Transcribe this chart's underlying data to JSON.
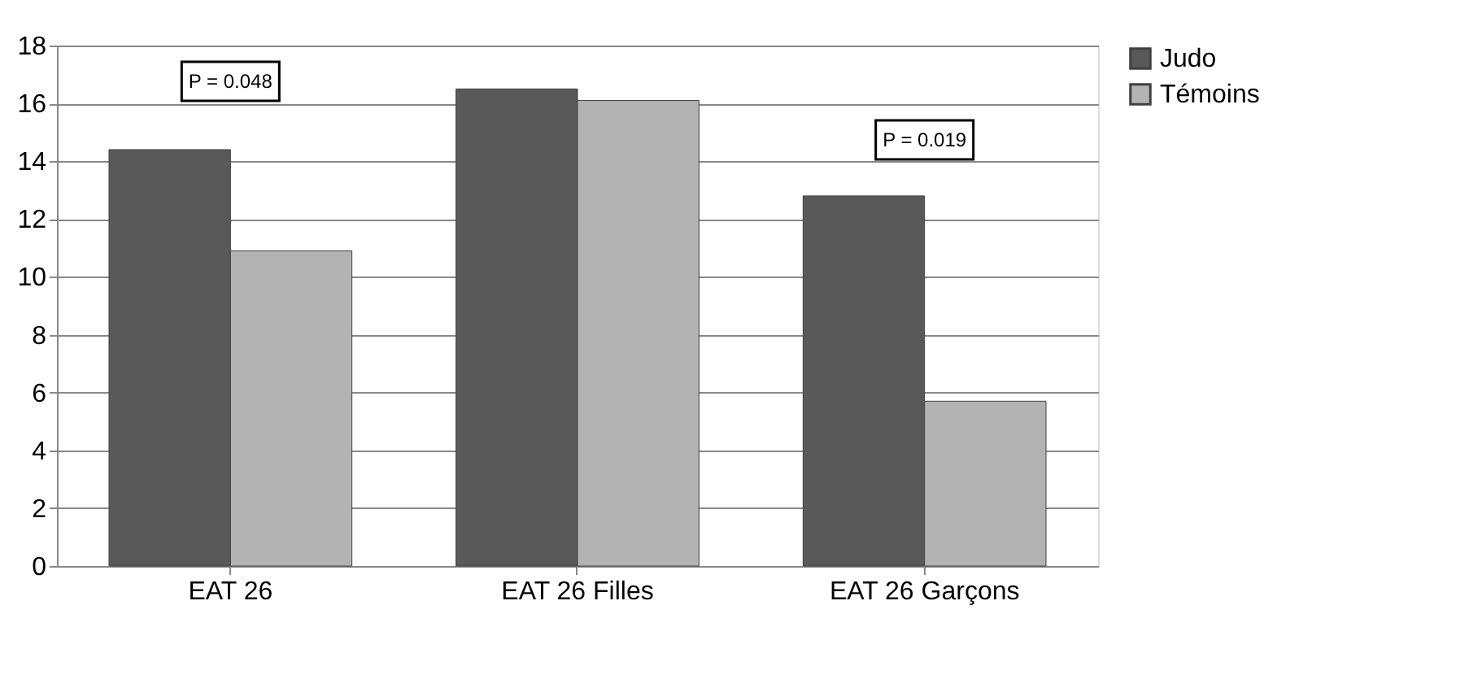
{
  "chart_data": {
    "type": "bar",
    "categories": [
      "EAT 26",
      "EAT 26 Filles",
      "EAT 26 Garçons"
    ],
    "series": [
      {
        "name": "Judo",
        "color": "#595959",
        "values": [
          14.4,
          16.5,
          12.8
        ]
      },
      {
        "name": "Témoins",
        "color": "#b3b3b3",
        "values": [
          10.9,
          16.1,
          5.7
        ]
      }
    ],
    "ylim": [
      0,
      18
    ],
    "yticks": [
      0,
      2,
      4,
      6,
      8,
      10,
      12,
      14,
      16,
      18
    ],
    "grid": "y",
    "legend": "right",
    "annotations": [
      "P = 0.048",
      "P = 0.019"
    ]
  }
}
